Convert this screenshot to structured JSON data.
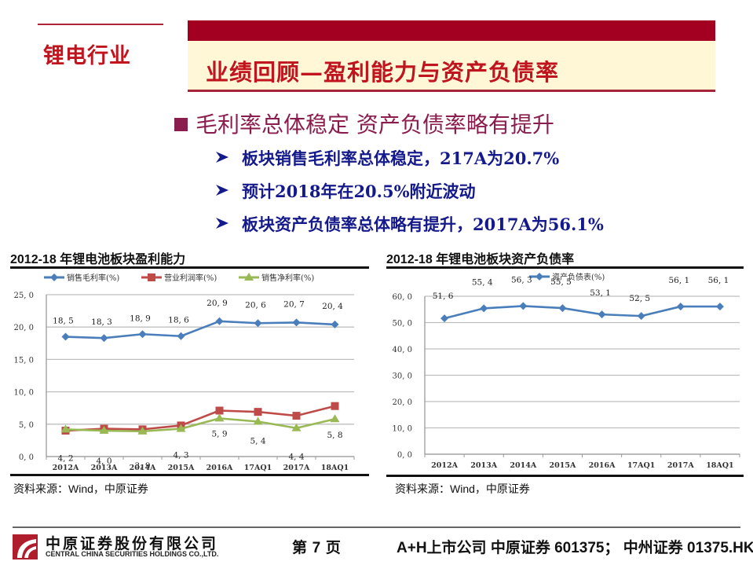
{
  "section": {
    "label": "锂电行业"
  },
  "banner": {
    "title": "业绩回顾—盈利能力与资产负债率"
  },
  "heading": {
    "text": "毛利率总体稳定 资产负债率略有提升"
  },
  "bullets": [
    {
      "text": "板块销售毛利率总体稳定，217A为20.7%"
    },
    {
      "text": "预计2018年在20.5%附近波动"
    },
    {
      "text": "板块资产负债率总体略有提升，2017A为56.1%"
    }
  ],
  "charts": {
    "left": {
      "title": "2012-18 年锂电池板块盈利能力",
      "source_prefix": "资料来源：",
      "source_latin": "Wind",
      "source_suffix": "，中原证券"
    },
    "right": {
      "title": "2012-18 年锂电池板块资产负债率",
      "source_prefix": "资料来源：",
      "source_latin": "Wind",
      "source_suffix": "，中原证券"
    }
  },
  "chart_data": [
    {
      "type": "line",
      "title": "2012-18 年锂电池板块盈利能力",
      "xlabel": "",
      "ylabel": "",
      "categories": [
        "2012A",
        "2013A",
        "2014A",
        "2015A",
        "2016A",
        "17AQ1",
        "2017A",
        "18AQ1"
      ],
      "series": [
        {
          "name": "销售毛利率(%)",
          "color": "#4a7ebb",
          "marker": "diamond",
          "values": [
            18.5,
            18.3,
            18.9,
            18.6,
            20.9,
            20.6,
            20.7,
            20.4
          ],
          "labels_shown": true
        },
        {
          "name": "营业利润率(%)",
          "color": "#be4b48",
          "marker": "square",
          "values": [
            4.0,
            4.3,
            4.2,
            4.8,
            7.1,
            6.9,
            6.3,
            7.8
          ],
          "labels_shown": false
        },
        {
          "name": "销售净利率(%)",
          "color": "#98b954",
          "marker": "triangle",
          "values": [
            4.2,
            4.0,
            3.9,
            4.3,
            5.9,
            5.4,
            4.4,
            5.8
          ],
          "labels_shown": true
        }
      ],
      "yticks": [
        "0.0",
        "5.0",
        "10.0",
        "15.0",
        "20.0",
        "25.0"
      ],
      "ylim": [
        0,
        25
      ],
      "grid": true,
      "legend_position": "top"
    },
    {
      "type": "line",
      "title": "2012-18 年锂电池板块资产负债率",
      "xlabel": "",
      "ylabel": "",
      "categories": [
        "2012A",
        "2013A",
        "2014A",
        "2015A",
        "2016A",
        "17AQ1",
        "2017A",
        "18AQ1"
      ],
      "series": [
        {
          "name": "资产负债表(%)",
          "color": "#4a7ebb",
          "marker": "diamond",
          "values": [
            51.6,
            55.4,
            56.3,
            55.5,
            53.1,
            52.5,
            56.1,
            56.1
          ],
          "labels_shown": true
        }
      ],
      "yticks": [
        "0.0",
        "10.0",
        "20.0",
        "30.0",
        "40.0",
        "50.0",
        "60.0"
      ],
      "ylim": [
        0,
        60
      ],
      "grid": true,
      "legend_position": "top"
    }
  ],
  "footer": {
    "company_cn": "中原证券股份有限公司",
    "company_en": "CENTRAL CHINA SECURITIES HOLDINGS CO.,LTD.",
    "page_prefix": "第",
    "page_number": "7",
    "page_suffix": "页",
    "listing": "A+H上市公司 中原证券 601375； 中州证券 01375.HK"
  },
  "colors": {
    "brand_red": "#a30021",
    "banner_cream": "#fff7d6",
    "heading_purple": "#8a1d4e",
    "bullet_blue": "#141a8c"
  }
}
